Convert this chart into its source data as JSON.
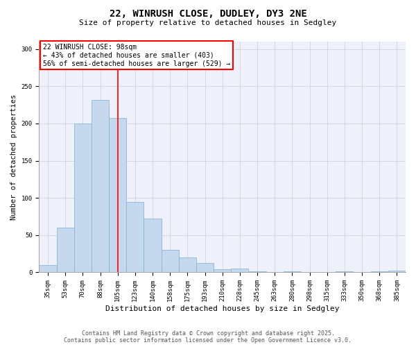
{
  "title1": "22, WINRUSH CLOSE, DUDLEY, DY3 2NE",
  "title2": "Size of property relative to detached houses in Sedgley",
  "xlabel": "Distribution of detached houses by size in Sedgley",
  "ylabel": "Number of detached properties",
  "categories": [
    "35sqm",
    "53sqm",
    "70sqm",
    "88sqm",
    "105sqm",
    "123sqm",
    "140sqm",
    "158sqm",
    "175sqm",
    "193sqm",
    "210sqm",
    "228sqm",
    "245sqm",
    "263sqm",
    "280sqm",
    "298sqm",
    "315sqm",
    "333sqm",
    "350sqm",
    "368sqm",
    "385sqm"
  ],
  "bar_values": [
    10,
    60,
    200,
    232,
    207,
    95,
    72,
    30,
    20,
    13,
    4,
    5,
    1,
    0,
    1,
    0,
    0,
    1,
    0,
    1,
    2
  ],
  "bar_color": "#c5d8ed",
  "bar_edge_color": "#7aafd4",
  "vline_x_index": 4,
  "vline_color": "red",
  "annotation_text": "22 WINRUSH CLOSE: 98sqm\n← 43% of detached houses are smaller (403)\n56% of semi-detached houses are larger (529) →",
  "annotation_box_color": "white",
  "annotation_box_edge_color": "red",
  "ylim": [
    0,
    310
  ],
  "yticks": [
    0,
    50,
    100,
    150,
    200,
    250,
    300
  ],
  "footer1": "Contains HM Land Registry data © Crown copyright and database right 2025.",
  "footer2": "Contains public sector information licensed under the Open Government Licence v3.0.",
  "bg_color": "#ffffff",
  "plot_bg_color": "#eef1fa",
  "grid_color": "#c8cdd8",
  "title1_fontsize": 10,
  "title2_fontsize": 8,
  "xlabel_fontsize": 8,
  "ylabel_fontsize": 7.5,
  "tick_fontsize": 6.5,
  "annotation_fontsize": 7,
  "footer_fontsize": 6
}
